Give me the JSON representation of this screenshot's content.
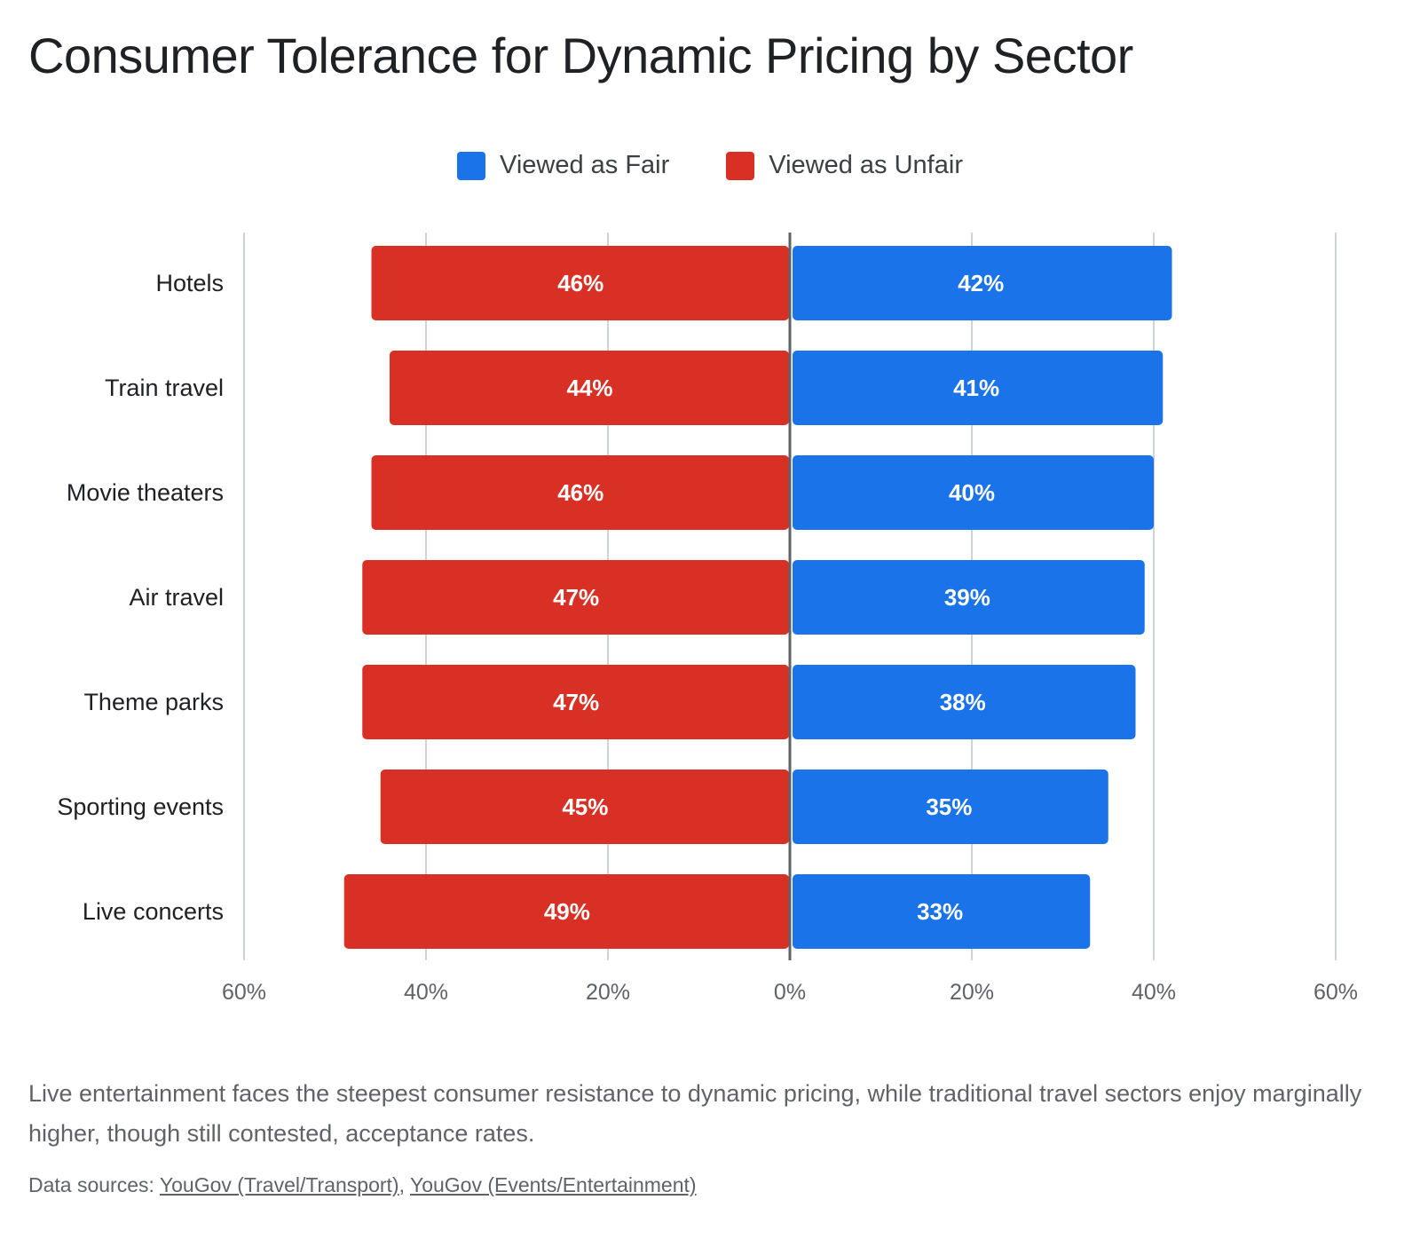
{
  "chart_data": {
    "type": "bar",
    "orientation": "horizontal-diverging",
    "title": "Consumer Tolerance for Dynamic Pricing by Sector",
    "categories": [
      "Hotels",
      "Train travel",
      "Movie theaters",
      "Air travel",
      "Theme parks",
      "Sporting events",
      "Live concerts"
    ],
    "series": [
      {
        "name": "Viewed as Fair",
        "color": "#1a73e8",
        "values": [
          42,
          41,
          40,
          39,
          38,
          35,
          33
        ],
        "labels": [
          "42%",
          "41%",
          "40%",
          "39%",
          "38%",
          "35%",
          "33%"
        ]
      },
      {
        "name": "Viewed as Unfair",
        "color": "#d93025",
        "values": [
          46,
          44,
          46,
          47,
          47,
          45,
          49
        ],
        "labels": [
          "46%",
          "44%",
          "46%",
          "47%",
          "47%",
          "45%",
          "49%"
        ]
      }
    ],
    "xlim": [
      -60,
      60
    ],
    "ticks": [
      -60,
      -40,
      -20,
      0,
      20,
      40,
      60
    ],
    "tick_labels": [
      "60%",
      "40%",
      "20%",
      "0%",
      "20%",
      "40%",
      "60%"
    ],
    "legend_position": "top-center",
    "grid": true
  },
  "caption": "Live entertainment faces the steepest consumer resistance to dynamic pricing, while traditional travel sectors enjoy marginally higher, though still contested, acceptance rates.",
  "sources": {
    "prefix": "Data sources: ",
    "links": [
      {
        "label": "YouGov (Travel/Transport)"
      },
      {
        "label": "YouGov (Events/Entertainment)"
      }
    ],
    "separator": ", "
  }
}
